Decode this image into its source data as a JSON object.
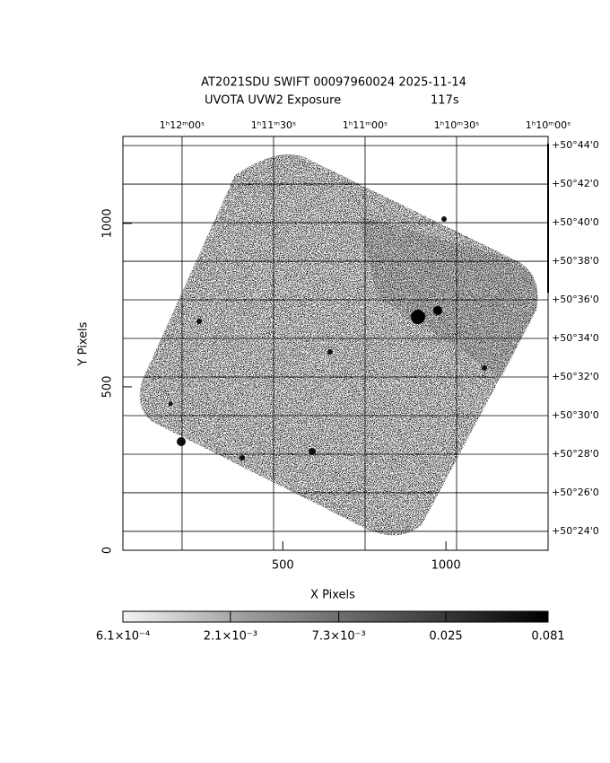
{
  "chart_data": {
    "type": "image",
    "title": "AT2021SDU SWIFT 00097960024 2025-11-14",
    "subtitle": "UVOTA UVW2 Exposure",
    "exposure": "117s",
    "x_label": "X Pixels",
    "y_label": "Y Pixels",
    "xlim": [
      10,
      1313
    ],
    "ylim": [
      0,
      1266
    ],
    "xticks": [
      500,
      1000
    ],
    "yticks": [
      0,
      500,
      1000
    ],
    "ra_lim": [
      4339.4,
      4200
    ],
    "ra_ticks": [
      {
        "value": 4320,
        "label": "1ʰ12ᵐ00ˢ"
      },
      {
        "value": 4290,
        "label": "1ʰ11ᵐ30ˢ"
      },
      {
        "value": 4260,
        "label": "1ʰ11ᵐ00ˢ"
      },
      {
        "value": 4230,
        "label": "1ʰ10ᵐ30ˢ"
      },
      {
        "value": 4200,
        "label": "1ʰ10ᵐ00ˢ"
      }
    ],
    "dec_lim": [
      3023.02,
      3044.47
    ],
    "dec_ticks": [
      {
        "value": 3044,
        "label": "+50°44'0"
      },
      {
        "value": 3042,
        "label": "+50°42'0"
      },
      {
        "value": 3040,
        "label": "+50°40'0"
      },
      {
        "value": 3038,
        "label": "+50°38'0"
      },
      {
        "value": 3036,
        "label": "+50°36'0"
      },
      {
        "value": 3034,
        "label": "+50°34'0"
      },
      {
        "value": 3032,
        "label": "+50°32'0"
      },
      {
        "value": 3030,
        "label": "+50°30'0"
      },
      {
        "value": 3028,
        "label": "+50°28'0"
      },
      {
        "value": 3026,
        "label": "+50°26'0"
      },
      {
        "value": 3024,
        "label": "+50°24'0"
      }
    ],
    "colorbar": {
      "log": true,
      "lim": [
        0.00061,
        0.081
      ],
      "ticks": [
        {
          "value": 0.00061,
          "label": "6.1×10⁻⁴"
        },
        {
          "value": 0.0021,
          "label": "2.1×10⁻³"
        },
        {
          "value": 0.0073,
          "label": "7.3×10⁻³"
        },
        {
          "value": 0.025,
          "label": "0.025"
        },
        {
          "value": 0.081,
          "label": "0.081"
        }
      ]
    }
  }
}
